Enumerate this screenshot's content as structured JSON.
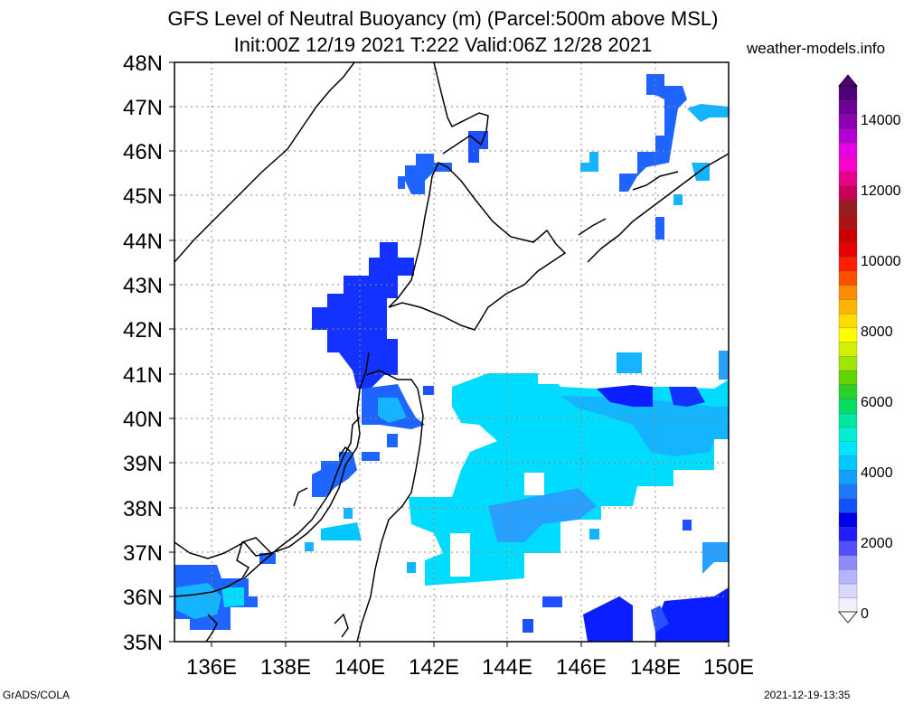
{
  "title_line1": "GFS Level of Neutral Buoyancy (m) (Parcel:500m above MSL)",
  "title_line2": "Init:00Z 12/19 2021 T:222 Valid:06Z 12/28 2021",
  "site": "weather-models.info",
  "footer_left": "GrADS/COLA",
  "footer_right": "2021-12-19-13:35",
  "lat_labels": [
    "48N",
    "47N",
    "46N",
    "45N",
    "44N",
    "43N",
    "42N",
    "41N",
    "40N",
    "39N",
    "38N",
    "37N",
    "36N",
    "35N"
  ],
  "lon_labels": [
    "136E",
    "138E",
    "140E",
    "142E",
    "144E",
    "146E",
    "148E",
    "150E"
  ],
  "colorbar_labels": [
    "14000",
    "12000",
    "10000",
    "8000",
    "6000",
    "4000",
    "2000",
    "0"
  ],
  "colorbar_colors": [
    "#f0f0ff",
    "#d8d8ff",
    "#b4b4ff",
    "#8c8cff",
    "#5050ff",
    "#1e1eff",
    "#0000e8",
    "#1450ff",
    "#1e78ff",
    "#14a0ff",
    "#00c8ff",
    "#00e6ff",
    "#00f0d2",
    "#00e6a0",
    "#00dc64",
    "#28d228",
    "#64d200",
    "#a0e600",
    "#d2f000",
    "#ffff00",
    "#ffdc00",
    "#ffb400",
    "#ff8c00",
    "#ff5000",
    "#ff1e00",
    "#e60000",
    "#c80000",
    "#aa1414",
    "#961e1e",
    "#c8005a",
    "#e6008c",
    "#ff00c8",
    "#e600e6",
    "#b400d2",
    "#8c00b4",
    "#6e0096",
    "#500078"
  ],
  "map_regions": [
    {
      "name": "west-coast-blue",
      "color": "#1e64ff"
    },
    {
      "name": "hokkaido-blue",
      "color": "#1432ff"
    },
    {
      "name": "pacific-cyan",
      "color": "#00dcff"
    },
    {
      "name": "pacific-lightblue",
      "color": "#14b4ff"
    },
    {
      "name": "deep-blue",
      "color": "#0a1eff"
    }
  ]
}
